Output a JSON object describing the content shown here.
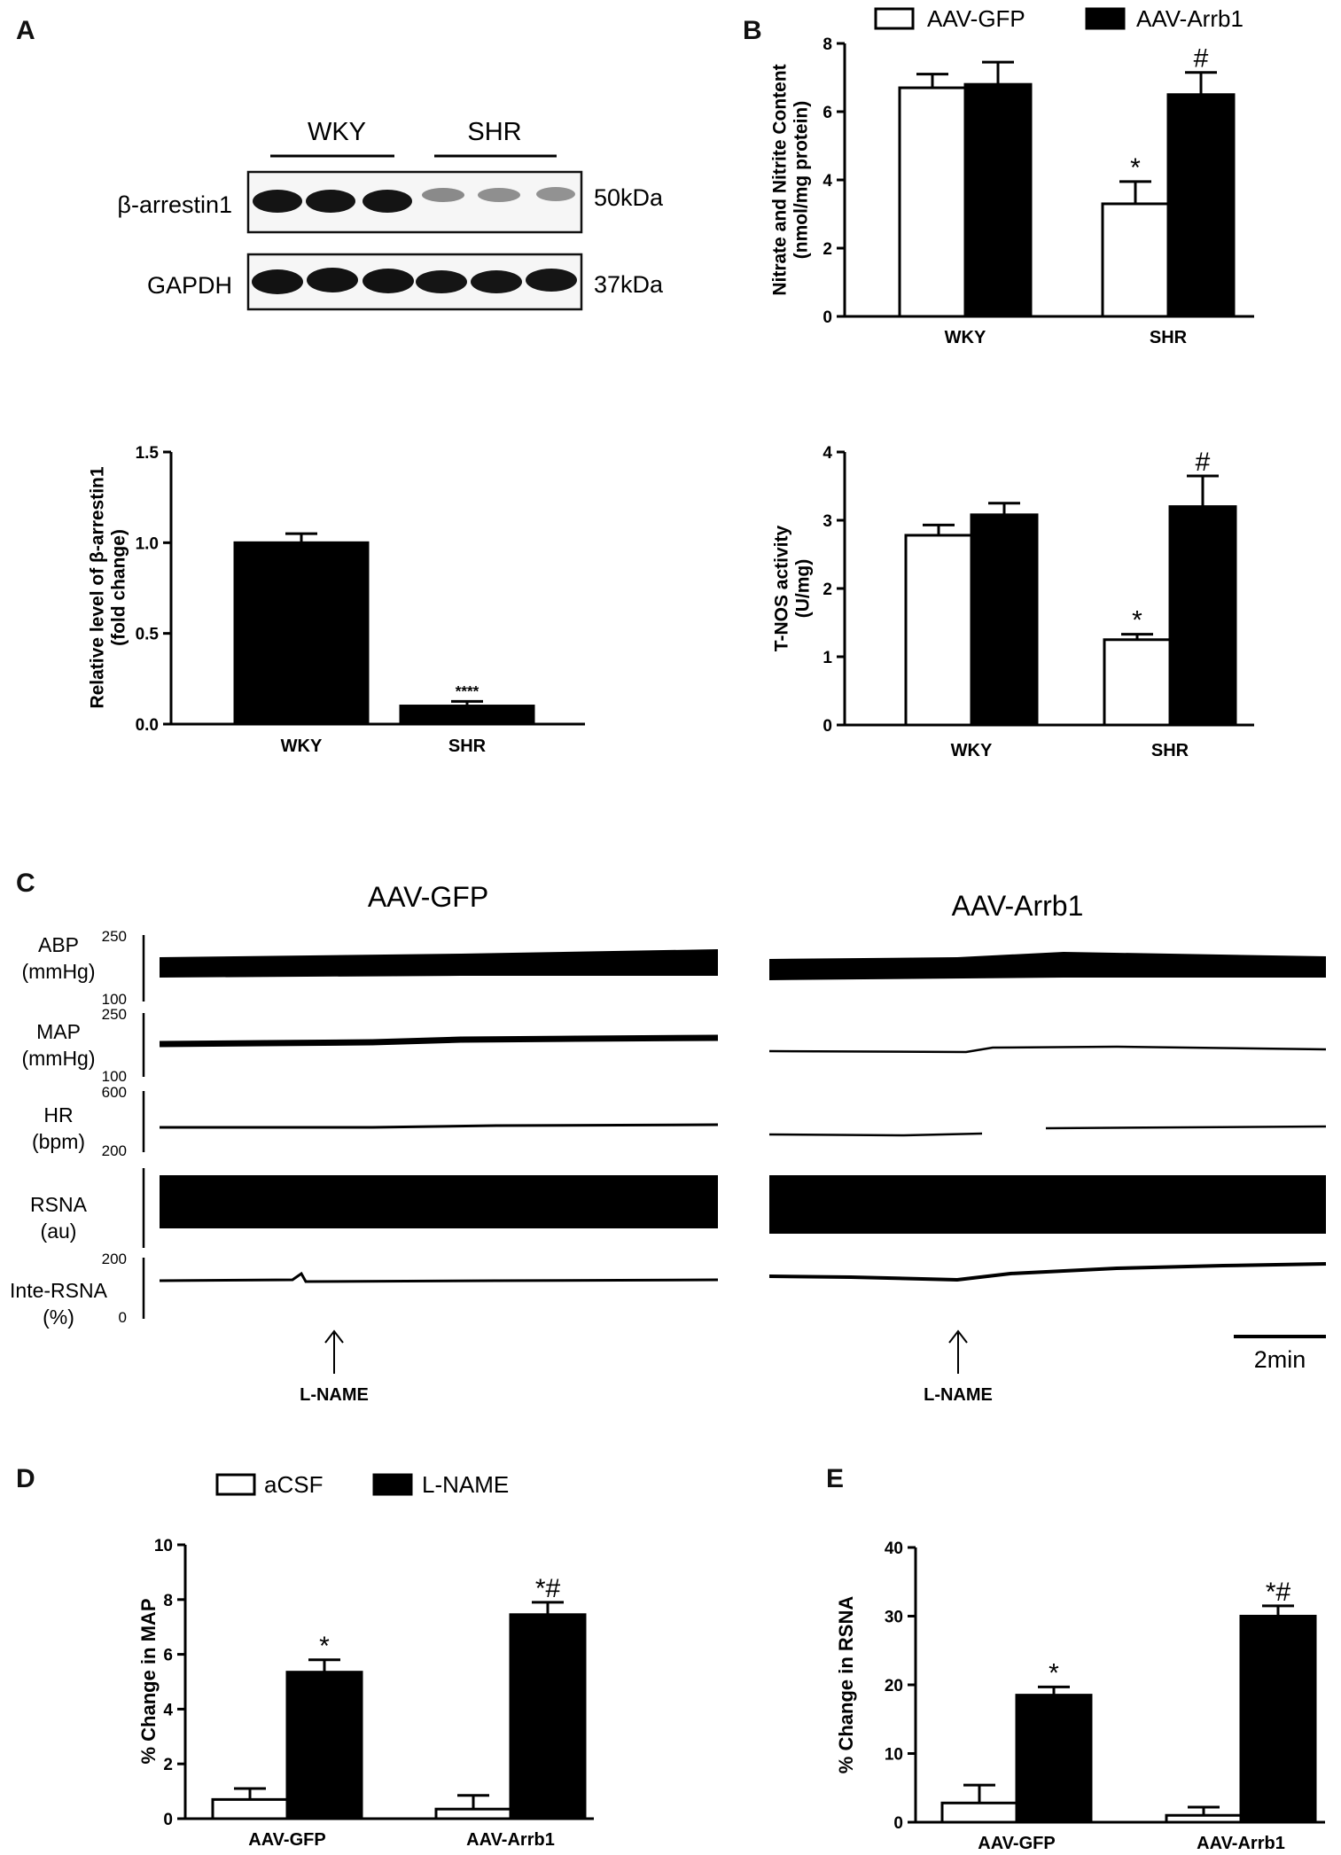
{
  "panel_labels": {
    "a": "A",
    "b": "B",
    "c": "C",
    "d": "D",
    "e": "E"
  },
  "blot": {
    "groups": [
      "WKY",
      "SHR"
    ],
    "rows": [
      {
        "label": "β-arrestin1",
        "size": "50kDa"
      },
      {
        "label": "GAPDH",
        "size": "37kDa"
      }
    ]
  },
  "legend_b": [
    "AAV-GFP",
    "AAV-Arrb1"
  ],
  "legend_d": [
    "aCSF",
    "L-NAME"
  ],
  "traces": {
    "titles": [
      "AAV-GFP",
      "AAV-Arrb1"
    ],
    "channels": [
      {
        "name": "ABP",
        "unit": "(mmHg)",
        "top": "250",
        "bottom": "100"
      },
      {
        "name": "MAP",
        "unit": "(mmHg)",
        "top": "250",
        "bottom": "100"
      },
      {
        "name": "HR",
        "unit": "(bpm)",
        "top": "600",
        "bottom": "200"
      },
      {
        "name": "RSNA",
        "unit": "(au)",
        "top": "",
        "bottom": ""
      },
      {
        "name": "Inte-RSNA",
        "unit": "(%)",
        "top": "200",
        "bottom": "0"
      }
    ],
    "marker": "L-NAME",
    "scalebar": "2min"
  },
  "chart_data": [
    {
      "id": "A-bar",
      "type": "bar",
      "categories": [
        "WKY",
        "SHR"
      ],
      "values": [
        1.0,
        0.1
      ],
      "errors": [
        0.05,
        0.025
      ],
      "annotations": [
        "",
        "****"
      ],
      "ylabel": "Relative level of β-arrestin1\n(fold change)",
      "ylim": [
        0,
        1.5
      ],
      "yticks": [
        "0.0",
        "0.5",
        "1.0",
        "1.5"
      ],
      "colors": [
        "#000000"
      ]
    },
    {
      "id": "B-top",
      "type": "bar",
      "categories": [
        "WKY",
        "SHR"
      ],
      "series": [
        {
          "name": "AAV-GFP",
          "values": [
            6.7,
            3.3
          ],
          "errors": [
            0.4,
            0.65
          ],
          "annotations": [
            "",
            "*"
          ]
        },
        {
          "name": "AAV-Arrb1",
          "values": [
            6.8,
            6.5
          ],
          "errors": [
            0.65,
            0.65
          ],
          "annotations": [
            "",
            "#"
          ]
        }
      ],
      "ylabel": "Nitrate and Nitrite Content\n(nmol/mg protein)",
      "ylim": [
        0,
        8
      ],
      "yticks": [
        "0",
        "2",
        "4",
        "6",
        "8"
      ]
    },
    {
      "id": "B-bottom",
      "type": "bar",
      "categories": [
        "WKY",
        "SHR"
      ],
      "series": [
        {
          "name": "AAV-GFP",
          "values": [
            2.78,
            1.25
          ],
          "errors": [
            0.15,
            0.08
          ],
          "annotations": [
            "",
            "*"
          ]
        },
        {
          "name": "AAV-Arrb1",
          "values": [
            3.08,
            3.2
          ],
          "errors": [
            0.17,
            0.45
          ],
          "annotations": [
            "",
            "#"
          ]
        }
      ],
      "ylabel": "T-NOS activity\n(U/mg)",
      "ylim": [
        0,
        4
      ],
      "yticks": [
        "0",
        "1",
        "2",
        "3",
        "4"
      ]
    },
    {
      "id": "D",
      "type": "bar",
      "categories": [
        "AAV-GFP",
        "AAV-Arrb1"
      ],
      "series": [
        {
          "name": "aCSF",
          "values": [
            0.7,
            0.35
          ],
          "errors": [
            0.4,
            0.5
          ],
          "annotations": [
            "",
            ""
          ]
        },
        {
          "name": "L-NAME",
          "values": [
            5.35,
            7.45
          ],
          "errors": [
            0.45,
            0.45
          ],
          "annotations": [
            "*",
            "*#"
          ]
        }
      ],
      "ylabel": "% Change in MAP",
      "ylim": [
        0,
        10
      ],
      "yticks": [
        "0",
        "2",
        "4",
        "6",
        "8",
        "10"
      ]
    },
    {
      "id": "E",
      "type": "bar",
      "categories": [
        "AAV-GFP",
        "AAV-Arrb1"
      ],
      "series": [
        {
          "name": "aCSF",
          "values": [
            2.8,
            1.0
          ],
          "errors": [
            2.6,
            1.2
          ],
          "annotations": [
            "",
            ""
          ]
        },
        {
          "name": "L-NAME",
          "values": [
            18.5,
            30.0
          ],
          "errors": [
            1.2,
            1.5
          ],
          "annotations": [
            "*",
            "*#"
          ]
        }
      ],
      "ylabel": "% Change in RSNA",
      "ylim": [
        0,
        40
      ],
      "yticks": [
        "0",
        "10",
        "20",
        "30",
        "40"
      ]
    }
  ]
}
